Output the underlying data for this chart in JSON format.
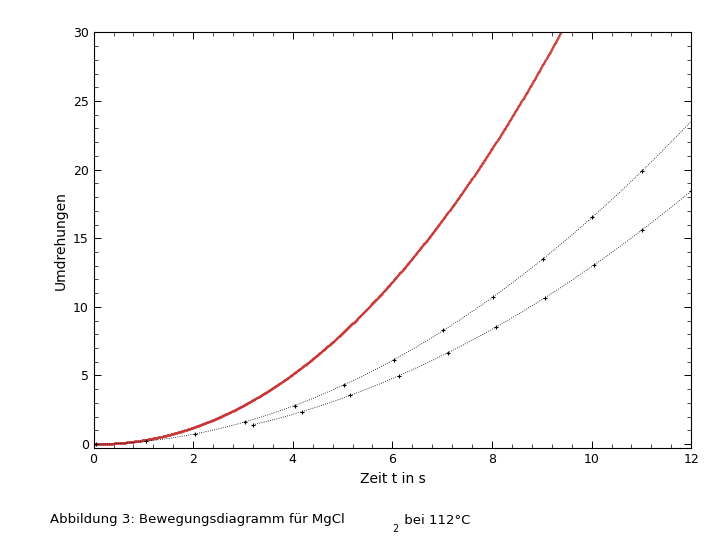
{
  "title": "",
  "xlabel": "Zeit t in s",
  "ylabel": "Umdrehungen",
  "caption": "Abbildung 3: Bewegungsdiagramm für MgCl₂ bei 112°C",
  "xlim": [
    0,
    12
  ],
  "ylim": [
    -0.3,
    30
  ],
  "yticks": [
    0,
    5,
    10,
    15,
    20,
    25,
    30
  ],
  "xticks": [
    0,
    2,
    4,
    6,
    8,
    10,
    12
  ],
  "red_color": "#c83232",
  "black_color": "#000000",
  "bg_color": "#ffffff",
  "fig_width": 7.2,
  "fig_height": 5.4,
  "dpi": 100,
  "red_a": 0.285,
  "red_b": 2.08,
  "red_t_end": 10.25,
  "black_upper_a": 0.185,
  "black_upper_b": 1.95,
  "black_upper_t_start": 0.05,
  "black_upper_t_end": 12.0,
  "black_lower_a": 0.145,
  "black_lower_b": 1.95,
  "black_lower_t_start": 3.2,
  "black_lower_t_end": 12.0
}
